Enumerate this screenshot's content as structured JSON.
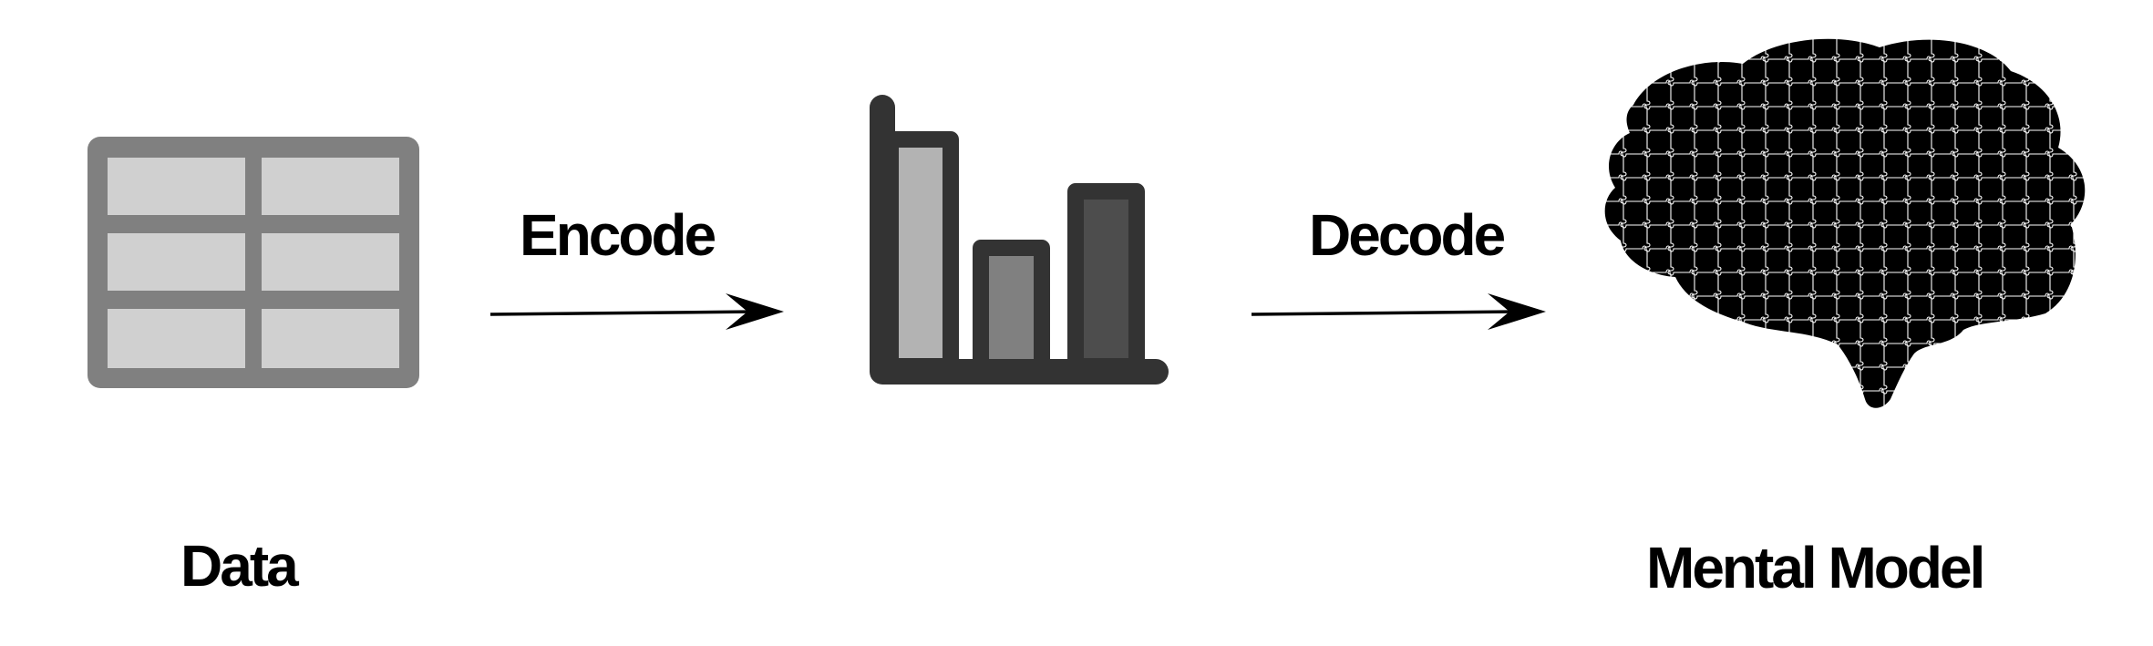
{
  "stages": {
    "data": {
      "label": "Data",
      "icon": "table-icon"
    },
    "chart": {
      "icon": "bar-chart-icon"
    },
    "mental_model": {
      "label": "Mental Model",
      "icon": "brain-puzzle-icon"
    }
  },
  "arrows": {
    "encode": {
      "label": "Encode"
    },
    "decode": {
      "label": "Decode"
    }
  },
  "colors": {
    "table_frame": "#808080",
    "table_cell": "#d0d0d0",
    "chart_frame": "#333333",
    "bar_light": "#b3b3b3",
    "bar_mid": "#808080",
    "bar_dark": "#4d4d4d",
    "brain": "#000000",
    "text": "#000000"
  }
}
